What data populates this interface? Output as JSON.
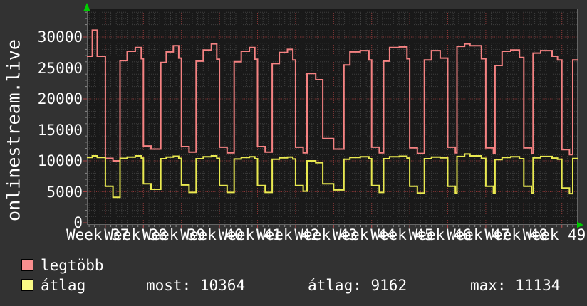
{
  "title": {
    "vertical_label": "onlinestream.live"
  },
  "colors": {
    "background": "#323232",
    "plot_background": "#191919",
    "text": "#ffffff",
    "grid_minor": "#3e3e3e",
    "grid_major": "#8a3636",
    "axis_border": "#666666",
    "tick_minor": "#8a8a8a",
    "tick_major": "#aa4444",
    "arrow": "#00cc00",
    "series_legtobb": "#f58282",
    "series_atlag": "#e9e950",
    "swatch_legtobb": "#f98f8f",
    "swatch_atlag": "#fafa85"
  },
  "legend": {
    "items": [
      {
        "label": "legtöbb"
      },
      {
        "label": "átlag"
      }
    ],
    "stats": [
      {
        "label": "most:",
        "value": "10364"
      },
      {
        "label": "átlag:",
        "value": "9162"
      },
      {
        "label": "max:",
        "value": "11134"
      }
    ]
  },
  "chart_data": {
    "type": "line",
    "style": "step",
    "title": "onlinestream.live",
    "xlabel": "",
    "ylabel": "onlinestream.live",
    "grid": true,
    "legend_position": "bottom-left",
    "x_axis": {
      "unit": "weeks",
      "labels": [
        "Week 37",
        "Week 38",
        "Week 39",
        "Week 40",
        "Week 41",
        "Week 42",
        "Week 43",
        "Week 44",
        "Week 45",
        "Week 46",
        "Week 47",
        "Week 48",
        "Week 49"
      ],
      "first_week_boundary_day": 3.4,
      "days_per_week": 7,
      "total_days": 90.3,
      "minor_grid_step_days": 1
    },
    "y_axis": {
      "ticks": [
        0,
        5000,
        10000,
        15000,
        20000,
        25000,
        30000
      ],
      "minor_step": 1000,
      "ylim": [
        0,
        34600
      ]
    },
    "series": [
      {
        "name": "legtöbb",
        "color": "#f58282",
        "points": [
          [
            0,
            26900
          ],
          [
            1.0,
            31100
          ],
          [
            1.9,
            26900
          ],
          [
            3.4,
            10400
          ],
          [
            4.8,
            10000
          ],
          [
            6.1,
            26200
          ],
          [
            7.4,
            27700
          ],
          [
            8.9,
            28300
          ],
          [
            10.0,
            26500
          ],
          [
            10.4,
            12400
          ],
          [
            11.8,
            11900
          ],
          [
            13.6,
            25900
          ],
          [
            14.6,
            27600
          ],
          [
            15.9,
            28600
          ],
          [
            16.9,
            26600
          ],
          [
            17.4,
            12300
          ],
          [
            18.8,
            11400
          ],
          [
            20.1,
            26100
          ],
          [
            21.4,
            27900
          ],
          [
            22.9,
            28900
          ],
          [
            23.9,
            26400
          ],
          [
            24.4,
            12200
          ],
          [
            25.8,
            11300
          ],
          [
            27.1,
            26000
          ],
          [
            28.4,
            27700
          ],
          [
            29.9,
            28300
          ],
          [
            30.9,
            26400
          ],
          [
            31.4,
            12300
          ],
          [
            32.8,
            11400
          ],
          [
            34.1,
            25700
          ],
          [
            35.4,
            27500
          ],
          [
            36.9,
            28000
          ],
          [
            37.9,
            26300
          ],
          [
            38.4,
            12200
          ],
          [
            39.8,
            11300
          ],
          [
            40.5,
            24100
          ],
          [
            42.1,
            23100
          ],
          [
            43.4,
            13600
          ],
          [
            45.4,
            11900
          ],
          [
            47.3,
            25500
          ],
          [
            48.4,
            27600
          ],
          [
            50.3,
            27800
          ],
          [
            51.9,
            26300
          ],
          [
            52.4,
            12200
          ],
          [
            53.8,
            11300
          ],
          [
            54.6,
            26100
          ],
          [
            55.7,
            28300
          ],
          [
            57.5,
            28400
          ],
          [
            58.9,
            26500
          ],
          [
            59.4,
            12100
          ],
          [
            60.8,
            11200
          ],
          [
            62.1,
            26300
          ],
          [
            63.4,
            27800
          ],
          [
            65.0,
            26600
          ],
          [
            66.4,
            12200
          ],
          [
            67.8,
            11300
          ],
          [
            68.1,
            28500
          ],
          [
            69.5,
            28900
          ],
          [
            70.5,
            28600
          ],
          [
            72.6,
            26500
          ],
          [
            73.4,
            12100
          ],
          [
            74.8,
            11200
          ],
          [
            75.1,
            25400
          ],
          [
            76.4,
            27700
          ],
          [
            78.0,
            27900
          ],
          [
            79.6,
            26700
          ],
          [
            80.4,
            12100
          ],
          [
            81.8,
            11200
          ],
          [
            82.1,
            27400
          ],
          [
            83.5,
            27800
          ],
          [
            85.6,
            26900
          ],
          [
            86.6,
            26300
          ],
          [
            87.4,
            11800
          ],
          [
            88.8,
            11000
          ],
          [
            89.4,
            26300
          ],
          [
            90.3,
            26300
          ]
        ]
      },
      {
        "name": "átlag",
        "color": "#e9e950",
        "stats": {
          "most": 10364,
          "átlag": 9162,
          "max": 11134
        },
        "points": [
          [
            0,
            10550
          ],
          [
            1.0,
            10800
          ],
          [
            1.9,
            10550
          ],
          [
            3.4,
            5900
          ],
          [
            4.8,
            4100
          ],
          [
            6.1,
            10400
          ],
          [
            7.4,
            10600
          ],
          [
            8.9,
            10800
          ],
          [
            10.0,
            10450
          ],
          [
            10.4,
            6300
          ],
          [
            11.8,
            5400
          ],
          [
            13.6,
            10350
          ],
          [
            14.6,
            10600
          ],
          [
            15.9,
            10750
          ],
          [
            16.9,
            10400
          ],
          [
            17.4,
            6100
          ],
          [
            18.8,
            4900
          ],
          [
            20.1,
            10350
          ],
          [
            21.4,
            10650
          ],
          [
            22.9,
            10800
          ],
          [
            23.9,
            10400
          ],
          [
            24.4,
            6000
          ],
          [
            25.8,
            4900
          ],
          [
            27.1,
            10300
          ],
          [
            28.4,
            10550
          ],
          [
            29.9,
            10650
          ],
          [
            30.9,
            10350
          ],
          [
            31.4,
            6000
          ],
          [
            32.8,
            4900
          ],
          [
            34.1,
            10250
          ],
          [
            35.4,
            10500
          ],
          [
            36.9,
            10600
          ],
          [
            37.9,
            10300
          ],
          [
            38.4,
            6000
          ],
          [
            39.8,
            5100
          ],
          [
            40.5,
            10000
          ],
          [
            42.1,
            9700
          ],
          [
            43.4,
            6300
          ],
          [
            45.4,
            5300
          ],
          [
            47.3,
            10250
          ],
          [
            48.4,
            10550
          ],
          [
            50.3,
            10650
          ],
          [
            51.9,
            10350
          ],
          [
            52.4,
            6000
          ],
          [
            53.8,
            4900
          ],
          [
            54.6,
            10350
          ],
          [
            55.7,
            10650
          ],
          [
            57.5,
            10750
          ],
          [
            58.9,
            10450
          ],
          [
            59.4,
            5900
          ],
          [
            60.8,
            4800
          ],
          [
            62.1,
            10350
          ],
          [
            63.4,
            10600
          ],
          [
            65.0,
            10500
          ],
          [
            66.4,
            5900
          ],
          [
            67.8,
            4800
          ],
          [
            68.1,
            10700
          ],
          [
            69.5,
            11100
          ],
          [
            70.5,
            10800
          ],
          [
            72.6,
            10400
          ],
          [
            73.4,
            5900
          ],
          [
            74.8,
            4800
          ],
          [
            75.1,
            10200
          ],
          [
            76.4,
            10550
          ],
          [
            78.0,
            10650
          ],
          [
            79.6,
            10350
          ],
          [
            80.4,
            5900
          ],
          [
            81.8,
            4800
          ],
          [
            82.1,
            10500
          ],
          [
            83.5,
            10700
          ],
          [
            85.6,
            10450
          ],
          [
            86.6,
            10250
          ],
          [
            87.4,
            5600
          ],
          [
            88.8,
            4700
          ],
          [
            89.4,
            10364
          ],
          [
            90.3,
            10364
          ]
        ]
      }
    ]
  }
}
